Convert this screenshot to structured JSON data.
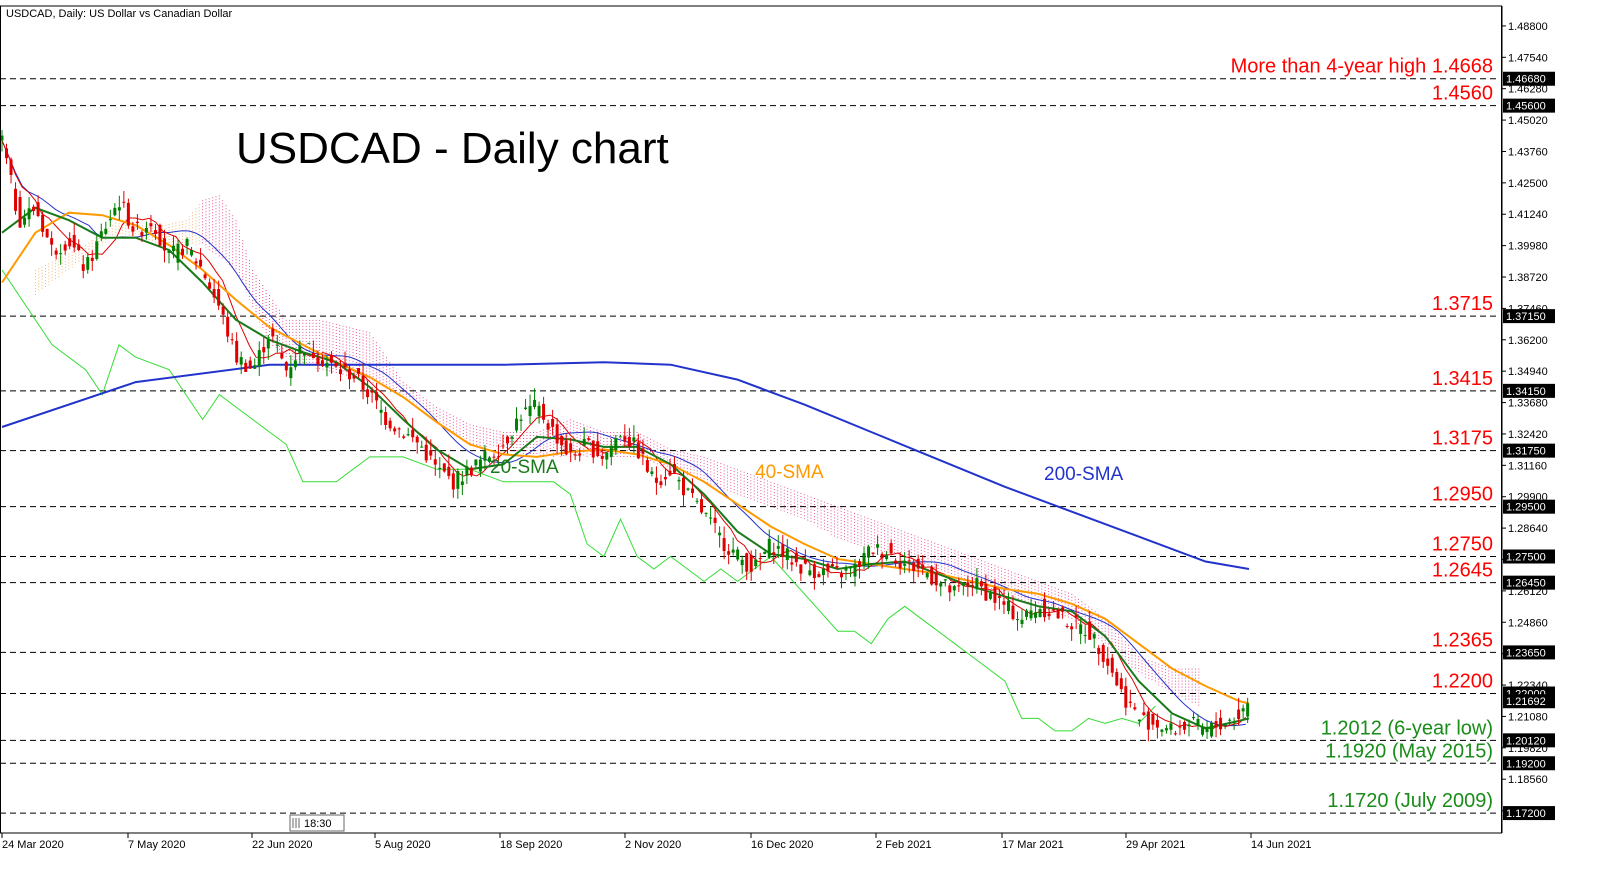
{
  "header": {
    "symbol_label": "USDCAD, Daily:  US Dollar vs Canadian Dollar",
    "time_box": "18:30"
  },
  "colors": {
    "candle_up": "#008000",
    "candle_down": "#e00000",
    "sma20": "#1a7a1a",
    "sma40": "#ff9900",
    "sma200": "#2233cc",
    "tenkan": "#e00000",
    "kijun": "#2233cc",
    "chikou": "#33dd33",
    "cloud_bear": "#e8559a",
    "cloud_bull": "#f5b87a",
    "level_red": "#ff0000",
    "level_green": "#1a8c1a"
  },
  "chart_data": {
    "type": "line",
    "title": "USDCAD - Daily chart",
    "series": [
      {
        "name": "20-SMA"
      },
      {
        "name": "40-SMA"
      },
      {
        "name": "200-SMA"
      }
    ],
    "y_axis": {
      "ylim": [
        1.164,
        1.496
      ],
      "ticks": [
        "1.48800",
        "1.47540",
        "1.46280",
        "1.45020",
        "1.43760",
        "1.42500",
        "1.41240",
        "1.39980",
        "1.38720",
        "1.37460",
        "1.36200",
        "1.34940",
        "1.33680",
        "1.32420",
        "1.31160",
        "1.29900",
        "1.28640",
        "1.27380",
        "1.26120",
        "1.24860",
        "1.23600",
        "1.22340",
        "1.21080",
        "1.19820",
        "1.18560",
        "1.17300"
      ]
    },
    "x_axis": {
      "ticks": [
        "24 Mar 2020",
        "7 May 2020",
        "22 Jun 2020",
        "5 Aug 2020",
        "18 Sep 2020",
        "2 Nov 2020",
        "16 Dec 2020",
        "2 Feb 2021",
        "17 Mar 2021",
        "29 Apr 2021",
        "14 Jun 2021"
      ]
    },
    "levels": [
      {
        "value": 1.4668,
        "label": "More than 4-year high 1.4668",
        "tag": "1.46680",
        "color": "red"
      },
      {
        "value": 1.456,
        "label": "1.4560",
        "tag": "1.45600",
        "color": "red"
      },
      {
        "value": 1.3715,
        "label": "1.3715",
        "tag": "1.37150",
        "color": "red"
      },
      {
        "value": 1.3415,
        "label": "1.3415",
        "tag": "1.34150",
        "color": "red"
      },
      {
        "value": 1.3175,
        "label": "1.3175",
        "tag": "1.31750",
        "color": "red"
      },
      {
        "value": 1.295,
        "label": "1.2950",
        "tag": "1.29500",
        "color": "red"
      },
      {
        "value": 1.275,
        "label": "1.2750",
        "tag": "1.27500",
        "color": "red"
      },
      {
        "value": 1.2645,
        "label": "1.2645",
        "tag": "1.26450",
        "color": "red"
      },
      {
        "value": 1.2365,
        "label": "1.2365",
        "tag": "1.23650",
        "color": "red"
      },
      {
        "value": 1.22,
        "label": "1.2200",
        "tag": "1.22000",
        "color": "red"
      },
      {
        "value": 1.2012,
        "label": "1.2012 (6-year low)",
        "tag": "1.20120",
        "color": "green"
      },
      {
        "value": 1.192,
        "label": "1.1920 (May 2015)",
        "tag": "1.19200",
        "color": "green"
      },
      {
        "value": 1.172,
        "label": "1.1720 (July 2009)",
        "tag": "1.17200",
        "color": "green"
      }
    ],
    "current_price_tags": [
      {
        "value": 1.2169,
        "tag": "1.21692"
      }
    ],
    "close_path": [
      [
        0,
        1.442
      ],
      [
        5,
        1.41
      ],
      [
        10,
        1.415
      ],
      [
        15,
        1.398
      ],
      [
        20,
        1.402
      ],
      [
        25,
        1.39
      ],
      [
        30,
        1.405
      ],
      [
        35,
        1.418
      ],
      [
        40,
        1.405
      ],
      [
        45,
        1.41
      ],
      [
        50,
        1.395
      ],
      [
        55,
        1.4
      ],
      [
        60,
        1.39
      ],
      [
        65,
        1.375
      ],
      [
        70,
        1.355
      ],
      [
        75,
        1.35
      ],
      [
        80,
        1.365
      ],
      [
        85,
        1.35
      ],
      [
        90,
        1.36
      ],
      [
        95,
        1.355
      ],
      [
        100,
        1.35
      ],
      [
        105,
        1.348
      ],
      [
        110,
        1.34
      ],
      [
        115,
        1.33
      ],
      [
        120,
        1.325
      ],
      [
        125,
        1.32
      ],
      [
        130,
        1.31
      ],
      [
        135,
        1.305
      ],
      [
        140,
        1.31
      ],
      [
        145,
        1.315
      ],
      [
        150,
        1.32
      ],
      [
        155,
        1.332
      ],
      [
        160,
        1.335
      ],
      [
        165,
        1.325
      ],
      [
        170,
        1.315
      ],
      [
        175,
        1.32
      ],
      [
        180,
        1.315
      ],
      [
        185,
        1.325
      ],
      [
        190,
        1.318
      ],
      [
        195,
        1.305
      ],
      [
        200,
        1.31
      ],
      [
        205,
        1.3
      ],
      [
        210,
        1.292
      ],
      [
        215,
        1.282
      ],
      [
        220,
        1.275
      ],
      [
        225,
        1.27
      ],
      [
        230,
        1.28
      ],
      [
        235,
        1.275
      ],
      [
        240,
        1.27
      ],
      [
        245,
        1.269
      ],
      [
        250,
        1.268
      ],
      [
        255,
        1.27
      ],
      [
        260,
        1.278
      ],
      [
        265,
        1.277
      ],
      [
        270,
        1.272
      ],
      [
        275,
        1.27
      ],
      [
        280,
        1.265
      ],
      [
        285,
        1.26
      ],
      [
        290,
        1.265
      ],
      [
        295,
        1.26
      ],
      [
        300,
        1.255
      ],
      [
        305,
        1.25
      ],
      [
        310,
        1.255
      ],
      [
        315,
        1.252
      ],
      [
        320,
        1.248
      ],
      [
        325,
        1.245
      ],
      [
        330,
        1.235
      ],
      [
        335,
        1.22
      ],
      [
        340,
        1.21
      ],
      [
        345,
        1.208
      ],
      [
        350,
        1.205
      ],
      [
        355,
        1.208
      ],
      [
        360,
        1.205
      ],
      [
        365,
        1.208
      ],
      [
        370,
        1.211
      ],
      [
        373,
        1.2169
      ]
    ],
    "sma20_path": [
      [
        0,
        1.405
      ],
      [
        10,
        1.415
      ],
      [
        20,
        1.41
      ],
      [
        30,
        1.403
      ],
      [
        40,
        1.403
      ],
      [
        50,
        1.398
      ],
      [
        60,
        1.385
      ],
      [
        70,
        1.37
      ],
      [
        80,
        1.362
      ],
      [
        90,
        1.357
      ],
      [
        100,
        1.353
      ],
      [
        110,
        1.343
      ],
      [
        120,
        1.33
      ],
      [
        130,
        1.318
      ],
      [
        140,
        1.31
      ],
      [
        150,
        1.312
      ],
      [
        160,
        1.323
      ],
      [
        170,
        1.322
      ],
      [
        180,
        1.319
      ],
      [
        190,
        1.319
      ],
      [
        200,
        1.312
      ],
      [
        210,
        1.3
      ],
      [
        220,
        1.285
      ],
      [
        230,
        1.276
      ],
      [
        240,
        1.274
      ],
      [
        250,
        1.27
      ],
      [
        260,
        1.272
      ],
      [
        270,
        1.273
      ],
      [
        280,
        1.268
      ],
      [
        290,
        1.263
      ],
      [
        300,
        1.259
      ],
      [
        310,
        1.255
      ],
      [
        320,
        1.253
      ],
      [
        330,
        1.243
      ],
      [
        340,
        1.225
      ],
      [
        350,
        1.212
      ],
      [
        360,
        1.206
      ],
      [
        370,
        1.209
      ],
      [
        373,
        1.21
      ]
    ],
    "sma40_path": [
      [
        0,
        1.385
      ],
      [
        10,
        1.405
      ],
      [
        20,
        1.413
      ],
      [
        30,
        1.412
      ],
      [
        40,
        1.408
      ],
      [
        50,
        1.4
      ],
      [
        60,
        1.39
      ],
      [
        70,
        1.378
      ],
      [
        80,
        1.367
      ],
      [
        90,
        1.36
      ],
      [
        100,
        1.353
      ],
      [
        110,
        1.347
      ],
      [
        120,
        1.339
      ],
      [
        130,
        1.329
      ],
      [
        140,
        1.32
      ],
      [
        150,
        1.316
      ],
      [
        160,
        1.315
      ],
      [
        170,
        1.317
      ],
      [
        180,
        1.318
      ],
      [
        190,
        1.316
      ],
      [
        200,
        1.312
      ],
      [
        210,
        1.305
      ],
      [
        220,
        1.296
      ],
      [
        230,
        1.287
      ],
      [
        240,
        1.28
      ],
      [
        250,
        1.274
      ],
      [
        260,
        1.272
      ],
      [
        270,
        1.27
      ],
      [
        280,
        1.268
      ],
      [
        290,
        1.265
      ],
      [
        300,
        1.262
      ],
      [
        310,
        1.26
      ],
      [
        320,
        1.256
      ],
      [
        330,
        1.25
      ],
      [
        340,
        1.24
      ],
      [
        350,
        1.23
      ],
      [
        360,
        1.223
      ],
      [
        370,
        1.217
      ],
      [
        373,
        1.216
      ]
    ],
    "sma200_path": [
      [
        0,
        1.327
      ],
      [
        40,
        1.345
      ],
      [
        80,
        1.352
      ],
      [
        120,
        1.352
      ],
      [
        150,
        1.352
      ],
      [
        180,
        1.353
      ],
      [
        200,
        1.352
      ],
      [
        220,
        1.346
      ],
      [
        240,
        1.336
      ],
      [
        260,
        1.325
      ],
      [
        280,
        1.314
      ],
      [
        300,
        1.303
      ],
      [
        320,
        1.293
      ],
      [
        340,
        1.283
      ],
      [
        360,
        1.273
      ],
      [
        373,
        1.27
      ]
    ],
    "chikou_path": [
      [
        0,
        1.39
      ],
      [
        15,
        1.36
      ],
      [
        25,
        1.35
      ],
      [
        30,
        1.34
      ],
      [
        35,
        1.36
      ],
      [
        40,
        1.355
      ],
      [
        50,
        1.35
      ],
      [
        55,
        1.34
      ],
      [
        60,
        1.33
      ],
      [
        65,
        1.34
      ],
      [
        75,
        1.33
      ],
      [
        85,
        1.32
      ],
      [
        90,
        1.305
      ],
      [
        100,
        1.305
      ],
      [
        110,
        1.315
      ],
      [
        120,
        1.315
      ],
      [
        130,
        1.31
      ],
      [
        140,
        1.31
      ],
      [
        150,
        1.305
      ],
      [
        155,
        1.305
      ],
      [
        165,
        1.305
      ],
      [
        170,
        1.3
      ],
      [
        175,
        1.28
      ],
      [
        180,
        1.275
      ],
      [
        185,
        1.29
      ],
      [
        190,
        1.275
      ],
      [
        195,
        1.27
      ],
      [
        200,
        1.275
      ],
      [
        210,
        1.265
      ],
      [
        215,
        1.27
      ],
      [
        220,
        1.265
      ],
      [
        230,
        1.275
      ],
      [
        240,
        1.26
      ],
      [
        250,
        1.245
      ],
      [
        255,
        1.245
      ],
      [
        260,
        1.24
      ],
      [
        265,
        1.25
      ],
      [
        270,
        1.255
      ],
      [
        275,
        1.25
      ],
      [
        280,
        1.245
      ],
      [
        285,
        1.24
      ],
      [
        290,
        1.235
      ],
      [
        300,
        1.225
      ],
      [
        305,
        1.21
      ],
      [
        310,
        1.21
      ],
      [
        315,
        1.205
      ],
      [
        320,
        1.205
      ],
      [
        325,
        1.21
      ],
      [
        330,
        1.208
      ],
      [
        335,
        1.21
      ],
      [
        340,
        1.208
      ],
      [
        345,
        1.215
      ]
    ],
    "cloud_path": [
      [
        10,
        1.39,
        1.38
      ],
      [
        25,
        1.4,
        1.395
      ],
      [
        35,
        1.41,
        1.405
      ],
      [
        45,
        1.407,
        1.4
      ],
      [
        55,
        1.41,
        1.4
      ],
      [
        60,
        1.418,
        1.4
      ],
      [
        65,
        1.42,
        1.395
      ],
      [
        70,
        1.41,
        1.39
      ],
      [
        75,
        1.39,
        1.375
      ],
      [
        80,
        1.38,
        1.36
      ],
      [
        85,
        1.37,
        1.355
      ],
      [
        95,
        1.37,
        1.35
      ],
      [
        110,
        1.365,
        1.345
      ],
      [
        120,
        1.345,
        1.34
      ],
      [
        130,
        1.335,
        1.33
      ],
      [
        140,
        1.328,
        1.32
      ],
      [
        150,
        1.325,
        1.318
      ],
      [
        160,
        1.325,
        1.315
      ],
      [
        170,
        1.33,
        1.315
      ],
      [
        180,
        1.325,
        1.315
      ],
      [
        190,
        1.325,
        1.315
      ],
      [
        200,
        1.318,
        1.31
      ],
      [
        210,
        1.315,
        1.305
      ],
      [
        220,
        1.31,
        1.3
      ],
      [
        230,
        1.305,
        1.295
      ],
      [
        240,
        1.3,
        1.29
      ],
      [
        250,
        1.295,
        1.282
      ],
      [
        260,
        1.29,
        1.278
      ],
      [
        270,
        1.285,
        1.275
      ],
      [
        280,
        1.28,
        1.27
      ],
      [
        290,
        1.275,
        1.265
      ],
      [
        300,
        1.27,
        1.26
      ],
      [
        310,
        1.265,
        1.255
      ],
      [
        320,
        1.26,
        1.25
      ],
      [
        330,
        1.25,
        1.24
      ],
      [
        340,
        1.235,
        1.228
      ],
      [
        350,
        1.23,
        1.22
      ],
      [
        358,
        1.23,
        1.215
      ]
    ]
  },
  "chart_text": {
    "sma20_label": "20-SMA",
    "sma40_label": "40-SMA",
    "sma200_label": "200-SMA"
  }
}
